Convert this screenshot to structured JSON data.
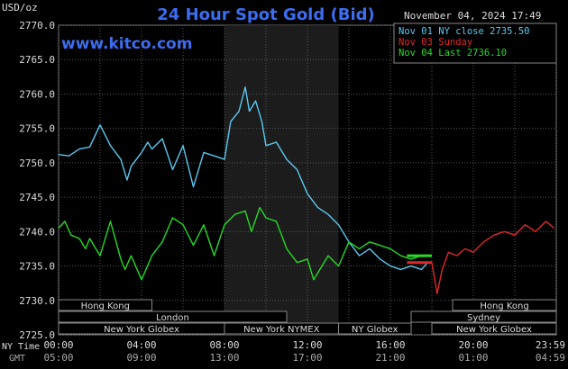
{
  "header": {
    "title": "24 Hour Spot Gold (Bid)",
    "unit": "USD/oz",
    "datetime": "November 04, 2024 17:49",
    "site": "www.kitco.com"
  },
  "legend": [
    {
      "label": "Nov 01 NY close 2735.50",
      "color": "#5ac8f0"
    },
    {
      "label": "Nov 03 Sunday",
      "color": "#e02828"
    },
    {
      "label": "Nov 04 Last 2736.10",
      "color": "#28d828"
    }
  ],
  "axis": {
    "y_ticks": [
      "2770.0",
      "2765.0",
      "2760.0",
      "2755.0",
      "2750.0",
      "2745.0",
      "2740.0",
      "2735.0",
      "2730.0",
      "2725.0"
    ],
    "x_ny_label": "NY Time",
    "x_gmt_label": "GMT",
    "x_ny_ticks": [
      "00:00",
      "04:00",
      "08:00",
      "12:00",
      "16:00",
      "20:00",
      "23:59"
    ],
    "x_gmt_ticks": [
      "05:00",
      "09:00",
      "13:00",
      "17:00",
      "21:00",
      "01:00",
      "04:59"
    ]
  },
  "sessions": {
    "hong_kong_1": "Hong Kong",
    "london": "London",
    "new_york_globex_1": "New York Globex",
    "new_york_nymex": "New York NYMEX",
    "ny_globex": "NY Globex",
    "hong_kong_2": "Hong Kong",
    "sydney": "Sydney",
    "new_york_globex_2": "New York Globex"
  },
  "chart_data": {
    "type": "line",
    "title": "24 Hour Spot Gold (Bid)",
    "ylabel": "USD/oz",
    "ylim": [
      2725.0,
      2770.0
    ],
    "xlim_hours_ny": [
      0,
      24
    ],
    "grid": true,
    "highlight_hours_ny": [
      8,
      13.5
    ],
    "series": [
      {
        "name": "Nov 01 NY close 2735.50",
        "color": "#5ac8f0",
        "x": [
          0,
          0.5,
          1,
          1.5,
          2,
          2.5,
          3,
          3.3,
          3.5,
          4,
          4.3,
          4.5,
          5,
          5.5,
          6,
          6.5,
          7,
          7.5,
          8,
          8.3,
          8.7,
          9,
          9.2,
          9.5,
          9.8,
          10,
          10.5,
          11,
          11.5,
          12,
          12.5,
          13,
          13.5,
          14,
          14.5,
          15,
          15.5,
          16,
          16.5,
          17,
          17.5,
          17.8
        ],
        "y": [
          2751.2,
          2751.0,
          2752.0,
          2752.3,
          2755.5,
          2752.5,
          2750.5,
          2747.5,
          2749.5,
          2751.5,
          2753.0,
          2752.0,
          2753.5,
          2749.0,
          2752.5,
          2746.5,
          2751.5,
          2751.0,
          2750.5,
          2756.0,
          2757.5,
          2761.0,
          2757.5,
          2759.0,
          2756.0,
          2752.5,
          2753.0,
          2750.5,
          2749.0,
          2745.5,
          2743.5,
          2742.5,
          2741.0,
          2738.5,
          2736.5,
          2737.5,
          2736.0,
          2735.0,
          2734.5,
          2735.0,
          2734.5,
          2735.5
        ]
      },
      {
        "name": "Nov 03 Sunday",
        "color": "#e02828",
        "x": [
          17.5,
          18.0,
          18.25,
          18.5,
          18.8,
          19.2,
          19.6,
          20.0,
          20.5,
          21.0,
          21.5,
          22.0,
          22.5,
          23.0,
          23.5,
          23.9
        ],
        "y": [
          2735.5,
          2735.5,
          2731.0,
          2734.5,
          2737.0,
          2736.5,
          2737.5,
          2737.0,
          2738.5,
          2739.5,
          2740.0,
          2739.5,
          2741.0,
          2740.0,
          2741.5,
          2740.5
        ]
      },
      {
        "name": "Nov 04 Last 2736.10",
        "color": "#28d828",
        "x": [
          0,
          0.3,
          0.6,
          1,
          1.3,
          1.5,
          2,
          2.5,
          3,
          3.2,
          3.5,
          4,
          4.5,
          5,
          5.5,
          6,
          6.5,
          7,
          7.5,
          8,
          8.5,
          9,
          9.3,
          9.7,
          10,
          10.5,
          11,
          11.5,
          12,
          12.3,
          12.6,
          13,
          13.5,
          14,
          14.5,
          15,
          15.5,
          16,
          16.5,
          17,
          17.5,
          18
        ],
        "y": [
          2740.5,
          2741.5,
          2739.5,
          2739.0,
          2737.5,
          2739.0,
          2736.5,
          2741.5,
          2736.0,
          2734.5,
          2736.5,
          2733.0,
          2736.5,
          2738.5,
          2742.0,
          2741.0,
          2738.0,
          2741.0,
          2736.5,
          2741.0,
          2742.5,
          2743.0,
          2740.0,
          2743.5,
          2742.0,
          2741.5,
          2737.5,
          2735.5,
          2736.0,
          2733.0,
          2734.5,
          2736.5,
          2735.0,
          2738.5,
          2737.5,
          2738.5,
          2738.0,
          2737.5,
          2736.5,
          2736.0,
          2736.5,
          2736.5
        ]
      }
    ]
  }
}
